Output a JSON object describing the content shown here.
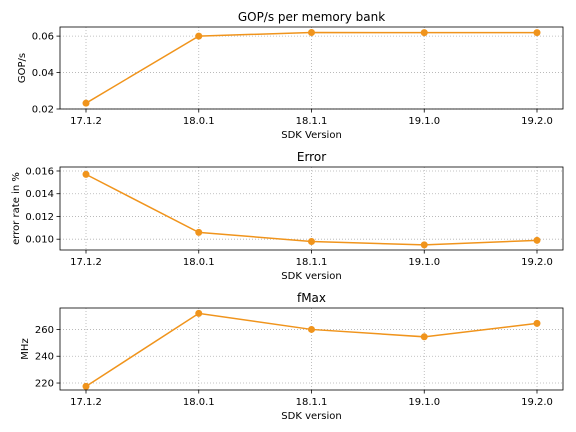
{
  "chart_data": [
    {
      "type": "line",
      "title": "GOP/s per memory bank",
      "xlabel": "SDK Version",
      "ylabel": "GOP/s",
      "categories": [
        "17.1.2",
        "18.0.1",
        "18.1.1",
        "19.1.0",
        "19.2.0"
      ],
      "values": [
        0.0232,
        0.06,
        0.062,
        0.0619,
        0.0619
      ],
      "ylim": [
        0.02,
        0.065
      ],
      "yticks": [
        0.02,
        0.04,
        0.06
      ],
      "ytick_labels": [
        "0.02",
        "0.04",
        "0.06"
      ],
      "grid": true,
      "color": "#f0941c"
    },
    {
      "type": "line",
      "title": "Error",
      "xlabel": "SDK version",
      "ylabel": "error rate in %",
      "categories": [
        "17.1.2",
        "18.0.1",
        "18.1.1",
        "19.1.0",
        "19.2.0"
      ],
      "values": [
        0.0157,
        0.0106,
        0.0098,
        0.0095,
        0.0099
      ],
      "ylim": [
        0.00905,
        0.01635
      ],
      "yticks": [
        0.01,
        0.012,
        0.014,
        0.016
      ],
      "ytick_labels": [
        "0.010",
        "0.012",
        "0.014",
        "0.016"
      ],
      "grid": true,
      "color": "#f0941c"
    },
    {
      "type": "line",
      "title": "fMax",
      "xlabel": "SDK version",
      "ylabel": "MHz",
      "categories": [
        "17.1.2",
        "18.0.1",
        "18.1.1",
        "19.1.0",
        "19.2.0"
      ],
      "values": [
        217.5,
        272.0,
        260.0,
        254.5,
        264.5
      ],
      "ylim": [
        214.8,
        276.0
      ],
      "yticks": [
        220,
        240,
        260
      ],
      "ytick_labels": [
        "220",
        "240",
        "260"
      ],
      "grid": true,
      "color": "#f0941c"
    }
  ]
}
